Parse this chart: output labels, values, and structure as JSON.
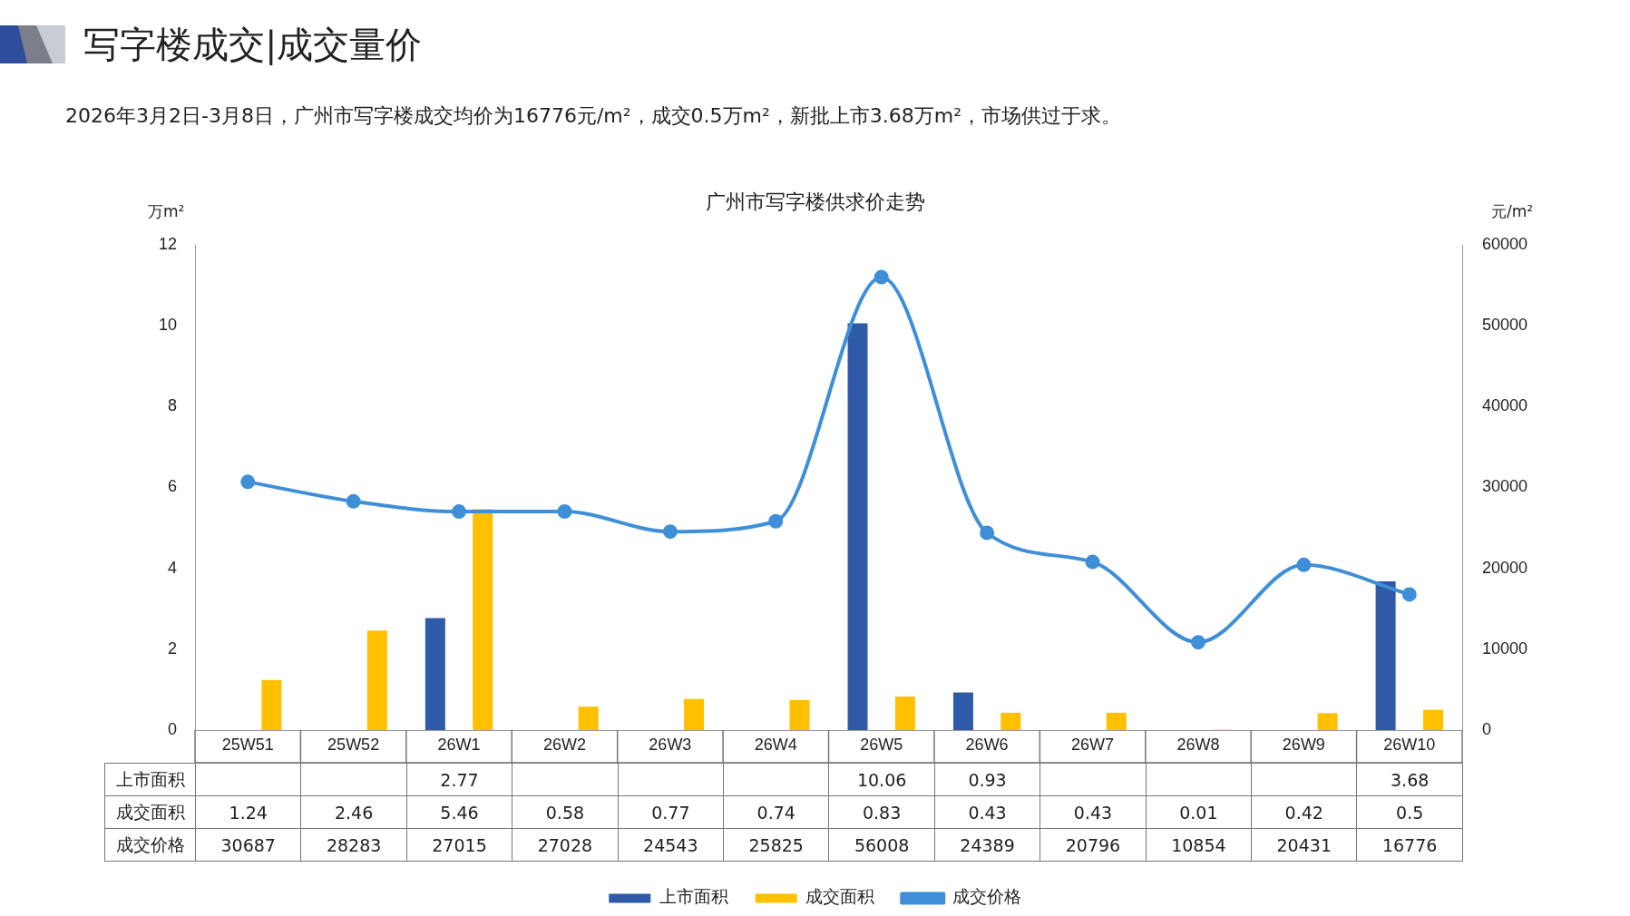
{
  "chart_data": {
    "type": "bar",
    "title": "广州市写字楼供求价走势",
    "annotations": [
      "写字楼成交|成交量价",
      "2026年3月2日-3月8日，广州市写字楼成交均价为16776元/m²，成交0.5万m²，新批上市3.68万m²，市场供过于求。"
    ],
    "categories": [
      "25W51",
      "25W52",
      "26W1",
      "26W2",
      "26W3",
      "26W4",
      "26W5",
      "26W6",
      "26W7",
      "26W8",
      "26W9",
      "26W10"
    ],
    "series": [
      {
        "name": "上市面积",
        "type": "bar",
        "color": "#2e5aa8",
        "values": [
          null,
          null,
          2.77,
          null,
          null,
          null,
          10.06,
          0.93,
          null,
          null,
          null,
          3.68
        ]
      },
      {
        "name": "成交面积",
        "type": "bar",
        "color": "#ffc000",
        "values": [
          1.24,
          2.46,
          5.46,
          0.58,
          0.77,
          0.74,
          0.83,
          0.43,
          0.43,
          0.01,
          0.42,
          0.5
        ]
      },
      {
        "name": "成交价格",
        "type": "line",
        "axis": "y2",
        "color": "#3f8fd8",
        "marker": "circle",
        "values": [
          30687,
          28283,
          27015,
          27028,
          24543,
          25825,
          56008,
          24389,
          20796,
          10854,
          20431,
          16776
        ]
      }
    ],
    "ylabel": "万m²",
    "y2label": "元/m²",
    "ylim": [
      0,
      12
    ],
    "yticks": [
      0,
      2,
      4,
      6,
      8,
      10,
      12
    ],
    "y2lim": [
      0,
      60000
    ],
    "y2ticks": [
      0,
      10000,
      20000,
      30000,
      40000,
      50000,
      60000
    ],
    "data_labels": true,
    "legend": "bottom",
    "grid": false
  }
}
